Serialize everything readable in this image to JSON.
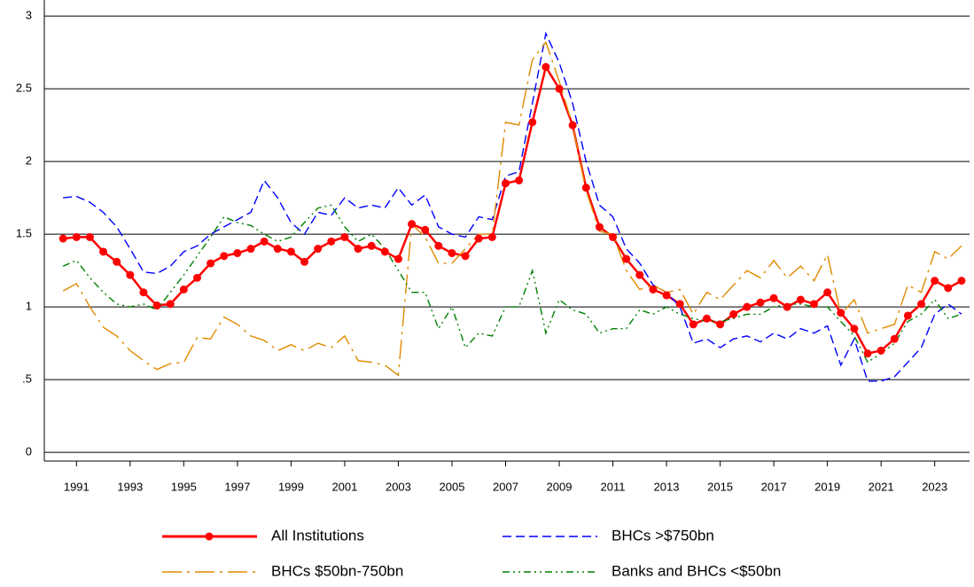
{
  "chart_data": {
    "type": "line",
    "x": [
      1990.5,
      1991,
      1991.5,
      1992,
      1992.5,
      1993,
      1993.5,
      1994,
      1994.5,
      1995,
      1995.5,
      1996,
      1996.5,
      1997,
      1997.5,
      1998,
      1998.5,
      1999,
      1999.5,
      2000,
      2000.5,
      2001,
      2001.5,
      2002,
      2002.5,
      2003,
      2003.5,
      2004,
      2004.5,
      2005,
      2005.5,
      2006,
      2006.5,
      2007,
      2007.5,
      2008,
      2008.5,
      2009,
      2009.5,
      2010,
      2010.5,
      2011,
      2011.5,
      2012,
      2012.5,
      2013,
      2013.5,
      2014,
      2014.5,
      2015,
      2015.5,
      2016,
      2016.5,
      2017,
      2017.5,
      2018,
      2018.5,
      2019,
      2019.5,
      2020,
      2020.5,
      2021,
      2021.5,
      2022,
      2022.5,
      2023,
      2023.5,
      2024
    ],
    "series": [
      {
        "name": "All Institutions",
        "color": "#ff0000",
        "dash": "solid",
        "marker": "circle",
        "values": [
          1.47,
          1.48,
          1.48,
          1.38,
          1.31,
          1.22,
          1.1,
          1.01,
          1.02,
          1.12,
          1.2,
          1.3,
          1.35,
          1.37,
          1.4,
          1.45,
          1.4,
          1.38,
          1.31,
          1.4,
          1.45,
          1.48,
          1.4,
          1.42,
          1.38,
          1.33,
          1.57,
          1.53,
          1.42,
          1.37,
          1.35,
          1.47,
          1.48,
          1.85,
          1.87,
          2.27,
          2.65,
          2.5,
          2.25,
          1.82,
          1.55,
          1.48,
          1.33,
          1.22,
          1.12,
          1.08,
          1.02,
          0.88,
          0.92,
          0.88,
          0.95,
          1.0,
          1.03,
          1.06,
          1.0,
          1.05,
          1.02,
          1.1,
          0.96,
          0.85,
          0.68,
          0.7,
          0.78,
          0.94,
          1.02,
          1.18,
          1.13,
          1.18
        ]
      },
      {
        "name": "BHCs >$750bn",
        "color": "#0000ff",
        "dash": "dashed",
        "values": [
          1.75,
          1.76,
          1.72,
          1.65,
          1.55,
          1.4,
          1.24,
          1.23,
          1.28,
          1.38,
          1.42,
          1.5,
          1.55,
          1.6,
          1.65,
          1.87,
          1.75,
          1.58,
          1.5,
          1.65,
          1.63,
          1.75,
          1.68,
          1.7,
          1.68,
          1.82,
          1.7,
          1.77,
          1.55,
          1.5,
          1.48,
          1.62,
          1.6,
          1.9,
          1.93,
          2.4,
          2.88,
          2.68,
          2.4,
          2.0,
          1.7,
          1.62,
          1.4,
          1.3,
          1.15,
          1.1,
          1.0,
          0.75,
          0.78,
          0.72,
          0.78,
          0.8,
          0.76,
          0.82,
          0.78,
          0.85,
          0.82,
          0.87,
          0.6,
          0.78,
          0.49,
          0.49,
          0.52,
          0.62,
          0.72,
          0.95,
          1.02,
          0.95
        ]
      },
      {
        "name": "BHCs $50bn-750bn",
        "color": "#e08a00",
        "dash": "dashdot",
        "values": [
          1.11,
          1.16,
          1.0,
          0.86,
          0.8,
          0.7,
          0.63,
          0.57,
          0.61,
          0.62,
          0.79,
          0.78,
          0.93,
          0.88,
          0.8,
          0.77,
          0.7,
          0.74,
          0.7,
          0.75,
          0.72,
          0.8,
          0.63,
          0.62,
          0.6,
          0.53,
          1.57,
          1.48,
          1.3,
          1.3,
          1.4,
          1.5,
          1.5,
          2.27,
          2.25,
          2.7,
          2.82,
          2.55,
          2.25,
          1.8,
          1.52,
          1.5,
          1.25,
          1.12,
          1.15,
          1.1,
          1.12,
          0.95,
          1.1,
          1.05,
          1.15,
          1.25,
          1.2,
          1.32,
          1.2,
          1.28,
          1.18,
          1.36,
          0.95,
          1.05,
          0.82,
          0.85,
          0.88,
          1.15,
          1.1,
          1.38,
          1.33,
          1.42
        ]
      },
      {
        "name": "Banks and BHCs <$50bn",
        "color": "#008000",
        "dash": "dashdotdot",
        "values": [
          1.28,
          1.32,
          1.2,
          1.1,
          1.02,
          1.0,
          1.02,
          0.98,
          1.1,
          1.22,
          1.35,
          1.48,
          1.62,
          1.58,
          1.56,
          1.5,
          1.45,
          1.48,
          1.58,
          1.68,
          1.7,
          1.55,
          1.45,
          1.5,
          1.4,
          1.25,
          1.1,
          1.1,
          0.85,
          1.0,
          0.72,
          0.82,
          0.8,
          1.0,
          1.0,
          1.25,
          0.82,
          1.05,
          0.98,
          0.95,
          0.82,
          0.85,
          0.85,
          0.98,
          0.95,
          1.0,
          0.95,
          0.92,
          0.9,
          0.9,
          0.92,
          0.95,
          0.95,
          1.0,
          1.02,
          1.02,
          1.0,
          1.0,
          0.9,
          0.8,
          0.62,
          0.68,
          0.75,
          0.9,
          0.95,
          1.05,
          0.92,
          0.95
        ]
      }
    ],
    "xlim": [
      1989.8,
      2024.3
    ],
    "xticks": [
      1991,
      1993,
      1995,
      1997,
      1999,
      2001,
      2003,
      2005,
      2007,
      2009,
      2011,
      2013,
      2015,
      2017,
      2019,
      2021,
      2023
    ],
    "ylim": [
      -0.06,
      3.08
    ],
    "yticks": [
      0,
      {
        "value": 0.5,
        "label": ".5"
      },
      1,
      {
        "value": 1.5,
        "label": "1.5"
      },
      2,
      {
        "value": 2.5,
        "label": "2.5"
      },
      3
    ],
    "grid": true
  }
}
